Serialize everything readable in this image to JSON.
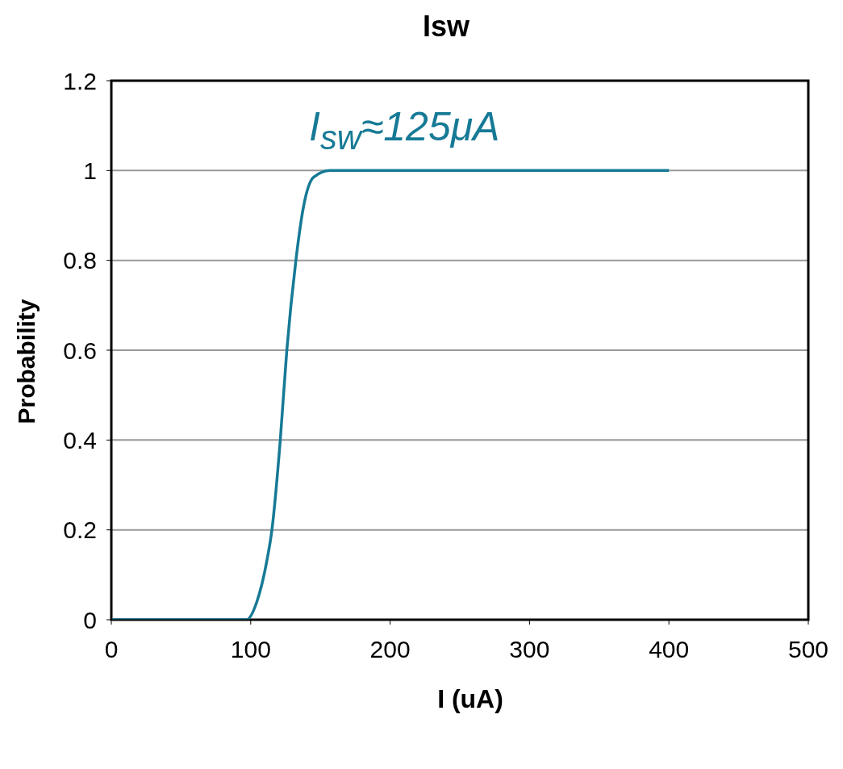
{
  "chart_data": {
    "type": "line",
    "title": "Isw",
    "xlabel": "I (uA)",
    "ylabel": "Probability",
    "annotations": [
      "I$_{sw}$≈125μA"
    ],
    "series": [
      {
        "color": "#167a96",
        "x": [
          0,
          50,
          97,
          104.4,
          111.5,
          115.2,
          121.2,
          125.9,
          132.4,
          137.9,
          145.1,
          157,
          200,
          300,
          400
        ],
        "values": [
          0,
          0,
          0,
          0.04,
          0.13,
          0.2,
          0.4,
          0.6,
          0.8,
          0.92,
          0.985,
          1,
          1,
          1,
          1
        ]
      }
    ],
    "xlim": [
      0,
      500
    ],
    "xticks": [
      0,
      100,
      200,
      300,
      400,
      500
    ],
    "ylim": [
      0,
      1.2
    ],
    "yticks": [
      0,
      0.2,
      0.4,
      0.6,
      0.8,
      1,
      1.2
    ],
    "grid": "y",
    "marker": "none",
    "line_style": "solid"
  }
}
